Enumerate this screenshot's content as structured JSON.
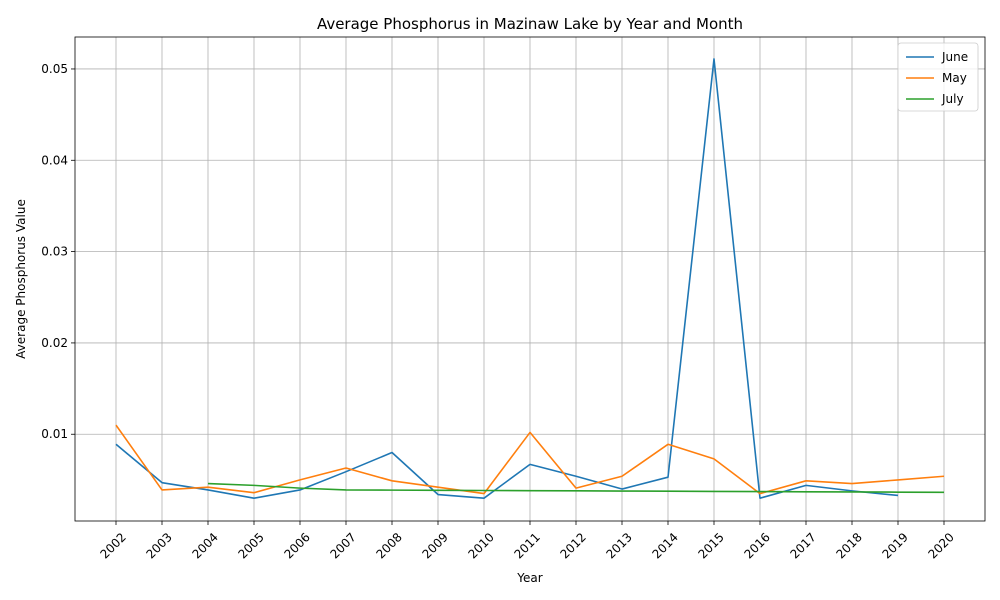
{
  "chart_data": {
    "type": "line",
    "title": "Average Phosphorus in Mazinaw Lake by Year and Month",
    "xlabel": "Year",
    "ylabel": "Average Phosphorus Value",
    "x": [
      2002,
      2003,
      2004,
      2005,
      2006,
      2007,
      2008,
      2009,
      2010,
      2011,
      2012,
      2013,
      2014,
      2015,
      2016,
      2017,
      2018,
      2019,
      2020
    ],
    "ylim": [
      0.0005,
      0.0535
    ],
    "yticks": [
      0.01,
      0.02,
      0.03,
      0.04,
      0.05
    ],
    "grid": true,
    "legend_position": "top-right",
    "series": [
      {
        "name": "June",
        "color": "#1f77b4",
        "values": [
          0.0089,
          0.0047,
          0.0039,
          0.003,
          0.0039,
          0.0059,
          0.008,
          0.0034,
          0.003,
          0.0067,
          0.0054,
          0.004,
          0.0053,
          0.0511,
          0.003,
          0.0044,
          0.0038,
          0.0033,
          null
        ]
      },
      {
        "name": "May",
        "color": "#ff7f0e",
        "values": [
          0.011,
          0.0039,
          0.0042,
          0.0036,
          0.005,
          0.0063,
          0.0049,
          0.0042,
          0.0035,
          0.0102,
          0.0041,
          0.0054,
          0.0089,
          0.0073,
          0.0035,
          0.0049,
          0.0046,
          0.005,
          0.0054
        ]
      },
      {
        "name": "July",
        "color": "#2ca02c",
        "values": [
          null,
          null,
          0.0046,
          0.0044,
          0.0041,
          0.0039,
          0.00388,
          0.00386,
          0.00384,
          0.00382,
          0.0038,
          0.00378,
          0.00376,
          0.00374,
          0.00372,
          0.0037,
          0.00368,
          0.00366,
          0.00364
        ]
      }
    ]
  }
}
